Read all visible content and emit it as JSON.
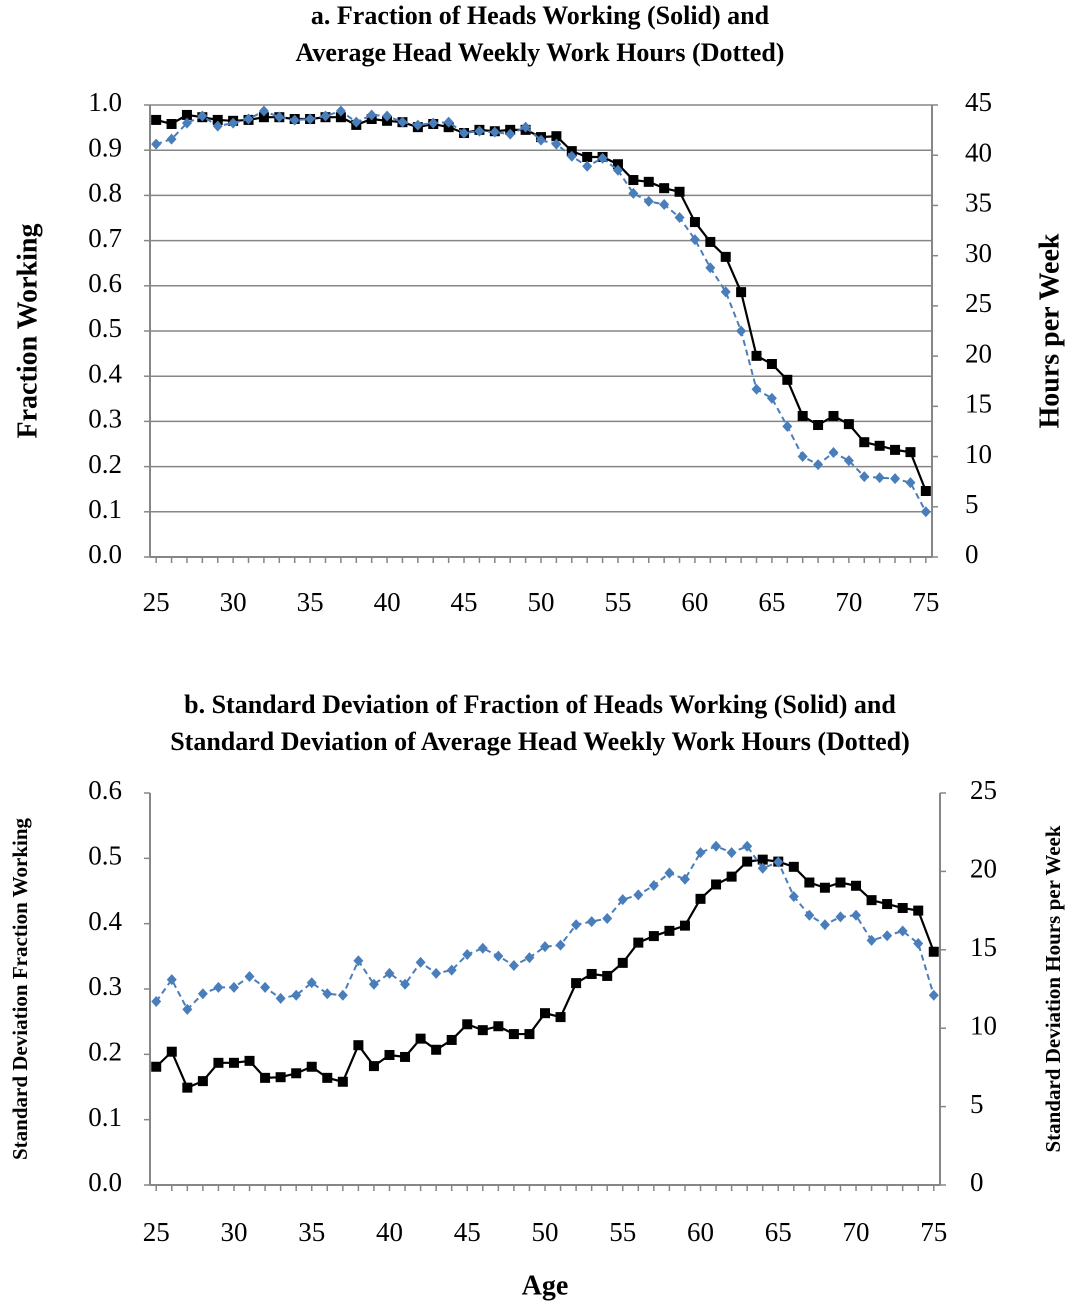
{
  "chart_data": [
    {
      "type": "line",
      "title": [
        "a.  Fraction of Heads Working (Solid) and",
        "Average Head Weekly Work Hours (Dotted)"
      ],
      "ylabel": "Fraction Working",
      "y2label": "Hours per Week",
      "x": [
        25,
        26,
        27,
        28,
        29,
        30,
        31,
        32,
        33,
        34,
        35,
        36,
        37,
        38,
        39,
        40,
        41,
        42,
        43,
        44,
        45,
        46,
        47,
        48,
        49,
        50,
        51,
        52,
        53,
        54,
        55,
        56,
        57,
        58,
        59,
        60,
        61,
        62,
        63,
        64,
        65,
        66,
        67,
        68,
        69,
        70,
        71,
        72,
        73,
        74,
        75
      ],
      "xlim": [
        24.6,
        75.4
      ],
      "xticks": [
        25,
        30,
        35,
        40,
        45,
        50,
        55,
        60,
        65,
        70,
        75
      ],
      "ylim": [
        0,
        1
      ],
      "yticks": [
        {
          "value": 0,
          "label": "0.0"
        },
        0.1,
        0.2,
        0.3,
        0.4,
        0.5,
        0.6,
        0.7,
        0.8,
        0.9,
        {
          "value": 1,
          "label": "1.0"
        }
      ],
      "y2lim": [
        0,
        45
      ],
      "y2ticks": [
        0,
        5,
        10,
        15,
        20,
        25,
        30,
        35,
        40,
        45
      ],
      "grid": true,
      "series": [
        {
          "color": "#000000",
          "marker": "square",
          "values": [
            0.967,
            0.958,
            0.978,
            0.973,
            0.967,
            0.965,
            0.967,
            0.973,
            0.973,
            0.969,
            0.969,
            0.973,
            0.973,
            0.956,
            0.969,
            0.965,
            0.962,
            0.951,
            0.958,
            0.951,
            0.938,
            0.945,
            0.942,
            0.945,
            0.945,
            0.929,
            0.931,
            0.898,
            0.885,
            0.885,
            0.869,
            0.834,
            0.83,
            0.816,
            0.808,
            0.741,
            0.697,
            0.664,
            0.586,
            0.445,
            0.427,
            0.392,
            0.312,
            0.292,
            0.312,
            0.294,
            0.254,
            0.246,
            0.237,
            0.232,
            0.146
          ]
        },
        {
          "color": "#4a7ebb",
          "marker": "diamond",
          "dashed": true,
          "axis": "y2",
          "values": [
            41.1,
            41.6,
            43.2,
            43.9,
            42.9,
            43.2,
            43.6,
            44.4,
            43.8,
            43.5,
            43.6,
            43.9,
            44.4,
            43.3,
            44.0,
            43.9,
            43.3,
            43.0,
            43.2,
            43.3,
            42.2,
            42.4,
            42.3,
            42.1,
            42.8,
            41.5,
            41.1,
            39.9,
            38.9,
            39.7,
            38.5,
            36.2,
            35.4,
            35.1,
            33.8,
            31.6,
            28.8,
            26.4,
            22.5,
            16.7,
            15.8,
            13.0,
            10.0,
            9.2,
            10.4,
            9.6,
            8.0,
            7.9,
            7.8,
            7.4,
            4.5
          ]
        }
      ]
    },
    {
      "type": "line",
      "title": [
        "b.  Standard Deviation of Fraction of Heads Working (Solid) and",
        "Standard Deviation of Average Head Weekly Work Hours (Dotted)"
      ],
      "ylabel": "Standard Deviation Fraction Working",
      "y2label": "Standard Deviation Hours per Week",
      "xlabel": "Age",
      "x": [
        25,
        26,
        27,
        28,
        29,
        30,
        31,
        32,
        33,
        34,
        35,
        36,
        37,
        38,
        39,
        40,
        41,
        42,
        43,
        44,
        45,
        46,
        47,
        48,
        49,
        50,
        51,
        52,
        53,
        54,
        55,
        56,
        57,
        58,
        59,
        60,
        61,
        62,
        63,
        64,
        65,
        66,
        67,
        68,
        69,
        70,
        71,
        72,
        73,
        74,
        75
      ],
      "xlim": [
        24.6,
        75.4
      ],
      "xticks": [
        25,
        30,
        35,
        40,
        45,
        50,
        55,
        60,
        65,
        70,
        75
      ],
      "ylim": [
        0,
        0.6
      ],
      "yticks": [
        {
          "value": 0,
          "label": "0.0"
        },
        0.1,
        0.2,
        0.3,
        0.4,
        0.5,
        0.6
      ],
      "y2lim": [
        0,
        25
      ],
      "y2ticks": [
        0,
        5,
        10,
        15,
        20,
        25
      ],
      "grid": false,
      "series": [
        {
          "color": "#000000",
          "marker": "square",
          "values": [
            0.181,
            0.204,
            0.149,
            0.159,
            0.187,
            0.187,
            0.19,
            0.164,
            0.165,
            0.171,
            0.181,
            0.164,
            0.158,
            0.214,
            0.182,
            0.199,
            0.196,
            0.224,
            0.207,
            0.222,
            0.246,
            0.237,
            0.243,
            0.231,
            0.231,
            0.263,
            0.257,
            0.309,
            0.323,
            0.32,
            0.34,
            0.371,
            0.381,
            0.389,
            0.397,
            0.438,
            0.46,
            0.472,
            0.495,
            0.498,
            0.495,
            0.487,
            0.463,
            0.455,
            0.463,
            0.458,
            0.436,
            0.43,
            0.424,
            0.42,
            0.357
          ]
        },
        {
          "color": "#4a7ebb",
          "marker": "diamond",
          "dashed": true,
          "axis": "y2",
          "values": [
            11.7,
            13.1,
            11.2,
            12.2,
            12.6,
            12.6,
            13.3,
            12.6,
            11.9,
            12.1,
            12.9,
            12.2,
            12.1,
            14.3,
            12.8,
            13.5,
            12.8,
            14.2,
            13.5,
            13.7,
            14.7,
            15.1,
            14.6,
            14.0,
            14.5,
            15.2,
            15.3,
            16.6,
            16.8,
            17.0,
            18.2,
            18.5,
            19.1,
            19.9,
            19.5,
            21.2,
            21.6,
            21.2,
            21.6,
            20.2,
            20.6,
            18.4,
            17.2,
            16.6,
            17.1,
            17.2,
            15.6,
            15.9,
            16.2,
            15.4,
            12.1
          ]
        }
      ]
    }
  ]
}
